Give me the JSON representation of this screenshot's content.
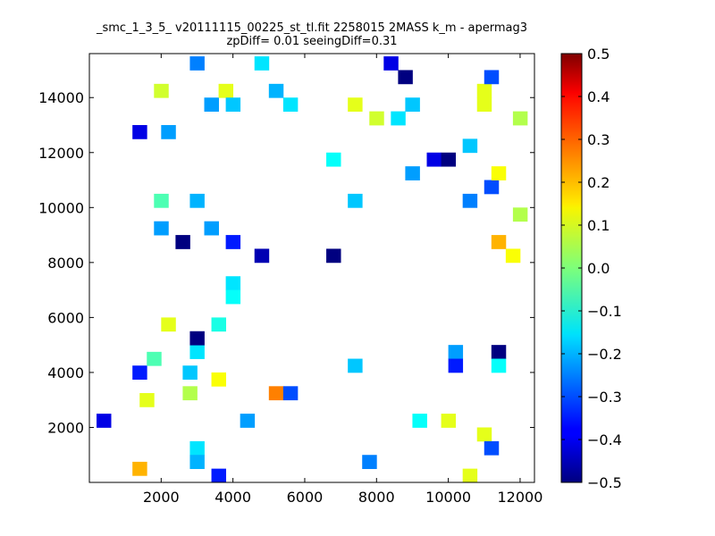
{
  "chart_data": {
    "type": "heatmap",
    "title": "_smc_1_3_5_ v20111115_00225_st_tl.fit 2258015 2MASS k_m - apermag3",
    "subtitle": "zpDiff= 0.01 seeingDiff=0.31",
    "xlabel": "",
    "ylabel": "",
    "xlim": [
      0,
      12400
    ],
    "ylim": [
      0,
      15600
    ],
    "xticks": [
      2000,
      4000,
      6000,
      8000,
      10000,
      12000
    ],
    "yticks": [
      2000,
      4000,
      6000,
      8000,
      10000,
      12000,
      14000
    ],
    "xtick_labels": [
      "2000",
      "4000",
      "6000",
      "8000",
      "10000",
      "12000"
    ],
    "ytick_labels": [
      "2000",
      "4000",
      "6000",
      "8000",
      "10000",
      "12000",
      "14000"
    ],
    "grid": false,
    "colormap": "jet",
    "colorbar": {
      "min": -0.5,
      "max": 0.5,
      "ticks": [
        0.5,
        0.4,
        0.3,
        0.2,
        0.1,
        0.0,
        -0.1,
        -0.2,
        -0.3,
        -0.4,
        -0.5
      ],
      "tick_labels": [
        "0.5",
        "0.4",
        "0.3",
        "0.2",
        "0.1",
        "0.0",
        "−0.1",
        "−0.2",
        "−0.3",
        "−0.4",
        "−0.5"
      ]
    },
    "cell_size": [
      400,
      500
    ],
    "cells": [
      [
        400,
        2250,
        -0.4
      ],
      [
        1400,
        500,
        0.2
      ],
      [
        1400,
        4000,
        -0.35
      ],
      [
        1400,
        12750,
        -0.4
      ],
      [
        1600,
        3000,
        0.1
      ],
      [
        1800,
        4500,
        -0.05
      ],
      [
        2000,
        14250,
        0.08
      ],
      [
        2000,
        10250,
        -0.05
      ],
      [
        2000,
        9250,
        -0.22
      ],
      [
        2200,
        5750,
        0.1
      ],
      [
        2200,
        12750,
        -0.22
      ],
      [
        2600,
        8750,
        -0.5
      ],
      [
        2800,
        4000,
        -0.18
      ],
      [
        2800,
        3250,
        0.05
      ],
      [
        3000,
        4750,
        -0.15
      ],
      [
        3000,
        5250,
        -0.5
      ],
      [
        3000,
        10250,
        -0.2
      ],
      [
        3000,
        15250,
        -0.25
      ],
      [
        3000,
        1250,
        -0.15
      ],
      [
        3000,
        750,
        -0.2
      ],
      [
        3400,
        13750,
        -0.22
      ],
      [
        3400,
        9250,
        -0.22
      ],
      [
        3600,
        3750,
        0.12
      ],
      [
        3600,
        5750,
        -0.1
      ],
      [
        3600,
        250,
        -0.35
      ],
      [
        3800,
        14250,
        0.1
      ],
      [
        4000,
        13750,
        -0.18
      ],
      [
        4000,
        8750,
        -0.35
      ],
      [
        4000,
        7250,
        -0.15
      ],
      [
        4000,
        6750,
        -0.12
      ],
      [
        4400,
        2250,
        -0.22
      ],
      [
        4800,
        15250,
        -0.15
      ],
      [
        4800,
        8250,
        -0.45
      ],
      [
        5200,
        3250,
        0.25
      ],
      [
        5200,
        14250,
        -0.2
      ],
      [
        5600,
        3250,
        -0.3
      ],
      [
        5600,
        13750,
        -0.15
      ],
      [
        6800,
        8250,
        -0.5
      ],
      [
        6800,
        11750,
        -0.12
      ],
      [
        7400,
        4250,
        -0.18
      ],
      [
        7400,
        10250,
        -0.18
      ],
      [
        7400,
        13750,
        0.1
      ],
      [
        7800,
        750,
        -0.25
      ],
      [
        8000,
        13250,
        0.08
      ],
      [
        8400,
        15250,
        -0.4
      ],
      [
        8600,
        13250,
        -0.15
      ],
      [
        8800,
        14750,
        -0.5
      ],
      [
        9000,
        11250,
        -0.22
      ],
      [
        9000,
        13750,
        -0.18
      ],
      [
        9200,
        2250,
        -0.12
      ],
      [
        9600,
        11750,
        -0.4
      ],
      [
        10000,
        11750,
        -0.5
      ],
      [
        10000,
        2250,
        0.1
      ],
      [
        10200,
        4750,
        -0.22
      ],
      [
        10200,
        4250,
        -0.35
      ],
      [
        10600,
        10250,
        -0.25
      ],
      [
        10600,
        12250,
        -0.18
      ],
      [
        10600,
        250,
        0.1
      ],
      [
        11000,
        14250,
        0.1
      ],
      [
        11000,
        13750,
        0.1
      ],
      [
        11000,
        1750,
        0.1
      ],
      [
        11200,
        14750,
        -0.3
      ],
      [
        11200,
        10750,
        -0.3
      ],
      [
        11200,
        1250,
        -0.3
      ],
      [
        11400,
        11250,
        0.12
      ],
      [
        11400,
        8750,
        0.2
      ],
      [
        11400,
        4750,
        -0.5
      ],
      [
        11400,
        4250,
        -0.12
      ],
      [
        11800,
        8250,
        0.12
      ],
      [
        12000,
        9750,
        0.05
      ],
      [
        12000,
        13250,
        0.05
      ]
    ]
  }
}
